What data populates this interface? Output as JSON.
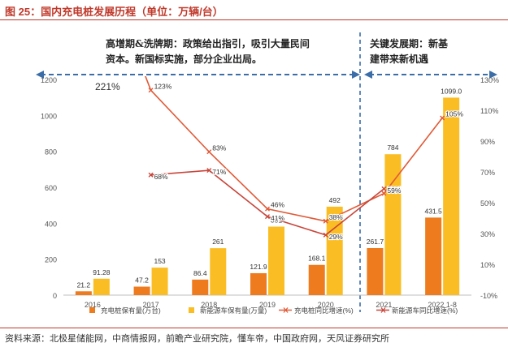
{
  "header": {
    "title": "图 25：国内充电桩发展历程（单位：万辆/台）"
  },
  "phases": {
    "left_line1": "高增期&洗牌期：政策给出指引，吸引大量民间",
    "left_line2": "资本。新国标实施，部分企业出局。",
    "right_line1": "关键发展期：新基",
    "right_line2": "建带来新机遇",
    "left_peak_label": "221%"
  },
  "footer": {
    "source": "资料来源：北极星储能网，中商情报网，前瞻产业研究院，懂车帝，中国政府网，天风证券研究所"
  },
  "chart_data": {
    "type": "bar",
    "categories": [
      "2016",
      "2017",
      "2018",
      "2019",
      "2020",
      "2021",
      "2022 1-8"
    ],
    "series": [
      {
        "name": "充电桩保有量(万台)",
        "kind": "bar",
        "axis": "left",
        "color": "#ee7b1e",
        "values": [
          21.2,
          47.2,
          86.4,
          121.9,
          168.1,
          261.7,
          431.5
        ],
        "labels": [
          "21.2",
          "47.2",
          "86.4",
          "121.9",
          "168.1",
          "261.7",
          "431.5"
        ]
      },
      {
        "name": "新能源车保有量(万量)",
        "kind": "bar",
        "axis": "left",
        "color": "#fbbd24",
        "values": [
          91.28,
          153,
          261,
          381,
          492,
          784,
          1099
        ],
        "labels": [
          "91.28",
          "153",
          "261",
          "381",
          "492",
          "784",
          "1099.0"
        ]
      },
      {
        "name": "充电桩同比增速(%)",
        "kind": "line",
        "axis": "right",
        "color": "#e05a37",
        "values": [
          221,
          123,
          83,
          46,
          38,
          56,
          105
        ],
        "labels": [
          "",
          "123%",
          "83%",
          "46%",
          "38%",
          "56%",
          "105%"
        ]
      },
      {
        "name": "新能源车同比增速(%)",
        "kind": "line",
        "axis": "right",
        "color": "#c8453a",
        "values": [
          null,
          68,
          71,
          41,
          29,
          59,
          null
        ],
        "labels": [
          "",
          "68%",
          "71%",
          "41%",
          "29%",
          "59%",
          ""
        ]
      }
    ],
    "y_left": {
      "min": 0,
      "max": 1200,
      "ticks": [
        "0",
        "200",
        "400",
        "600",
        "800",
        "1000",
        "1200"
      ]
    },
    "y_right": {
      "min": -10,
      "max": 130,
      "ticks": [
        "-10%",
        "10%",
        "30%",
        "50%",
        "70%",
        "90%",
        "110%",
        "130%"
      ]
    },
    "grid": false,
    "legend_position": "bottom"
  }
}
